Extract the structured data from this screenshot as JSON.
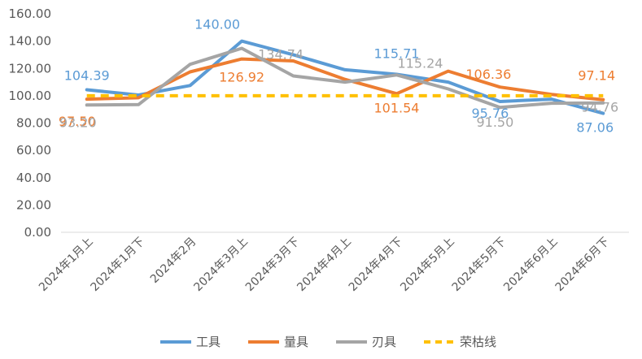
{
  "chart_data": {
    "type": "line",
    "categories": [
      "2024年1月上",
      "2024年1月下",
      "2024年2月",
      "2024年3月上",
      "2024年3月下",
      "2024年4月上",
      "2024年4月下",
      "2024年5月上",
      "2024年5月下",
      "2024年6月上",
      "2024年6月下"
    ],
    "ylim": [
      0,
      160
    ],
    "yticks": [
      "0.00",
      "20.00",
      "40.00",
      "60.00",
      "80.00",
      "100.00",
      "120.00",
      "140.00",
      "160.00"
    ],
    "grid": false,
    "legend_position": "bottom",
    "series": [
      {
        "name": "工具",
        "color": "#5b9bd5",
        "dashed": false,
        "values": [
          104.39,
          100.5,
          107.5,
          140.0,
          130.0,
          119.0,
          115.71,
          110.0,
          95.76,
          97.5,
          87.06
        ],
        "labels": [
          {
            "index": 0,
            "text": "104.39"
          },
          {
            "index": 3,
            "text": "140.00"
          },
          {
            "index": 6,
            "text": "115.71"
          },
          {
            "index": 8,
            "text": "95.76"
          },
          {
            "index": 10,
            "text": "87.06"
          }
        ]
      },
      {
        "name": "量具",
        "color": "#ed7d31",
        "dashed": false,
        "values": [
          97.5,
          98.5,
          117.5,
          126.92,
          125.5,
          112.0,
          101.54,
          118.0,
          106.36,
          101.0,
          97.14
        ],
        "labels": [
          {
            "index": 0,
            "text": "97.50"
          },
          {
            "index": 3,
            "text": "126.92"
          },
          {
            "index": 6,
            "text": "101.54"
          },
          {
            "index": 8,
            "text": "106.36"
          },
          {
            "index": 10,
            "text": "97.14"
          }
        ]
      },
      {
        "name": "刃具",
        "color": "#a5a5a5",
        "dashed": false,
        "values": [
          93.2,
          93.5,
          123.0,
          134.74,
          114.5,
          110.0,
          115.24,
          105.0,
          91.5,
          94.5,
          94.76
        ],
        "labels": [
          {
            "index": 0,
            "text": "93.20"
          },
          {
            "index": 3,
            "text": "134.74"
          },
          {
            "index": 6,
            "text": "115.24"
          },
          {
            "index": 8,
            "text": "91.50"
          },
          {
            "index": 10,
            "text": "94.76"
          }
        ]
      },
      {
        "name": "荣枯线",
        "color": "#ffc000",
        "dashed": true,
        "values": [
          100,
          100,
          100,
          100,
          100,
          100,
          100,
          100,
          100,
          100,
          100
        ],
        "labels": []
      }
    ]
  }
}
